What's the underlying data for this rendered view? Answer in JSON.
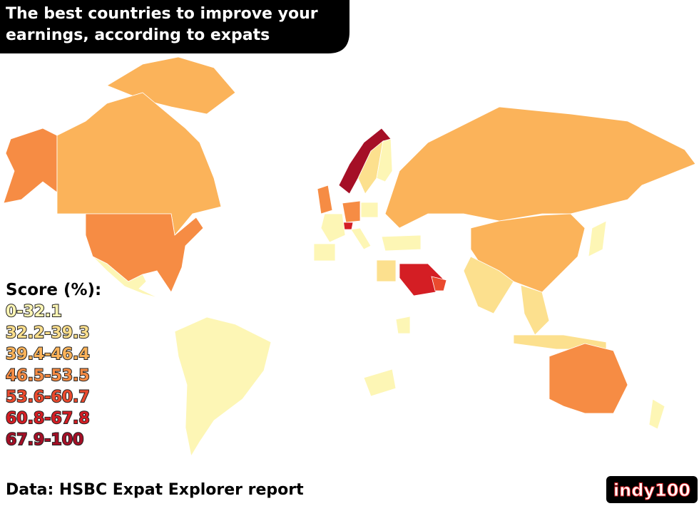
{
  "header": {
    "title_lines": [
      "The best countries to improve your",
      "earnings, according to expats"
    ]
  },
  "legend": {
    "title": "Score (%):",
    "items": [
      {
        "label": "0-32.1",
        "color": "#fdf6b5"
      },
      {
        "label": "32.2-39.3",
        "color": "#fce08e"
      },
      {
        "label": "39.4-46.4",
        "color": "#fbb35a"
      },
      {
        "label": "46.5-53.5",
        "color": "#f68c44"
      },
      {
        "label": "53.6-60.7",
        "color": "#ea4a2e"
      },
      {
        "label": "60.8-67.8",
        "color": "#d41e24"
      },
      {
        "label": "67.9-100",
        "color": "#a50f26"
      }
    ]
  },
  "source": "Data: HSBC Expat Explorer report",
  "logo": "indy100"
}
